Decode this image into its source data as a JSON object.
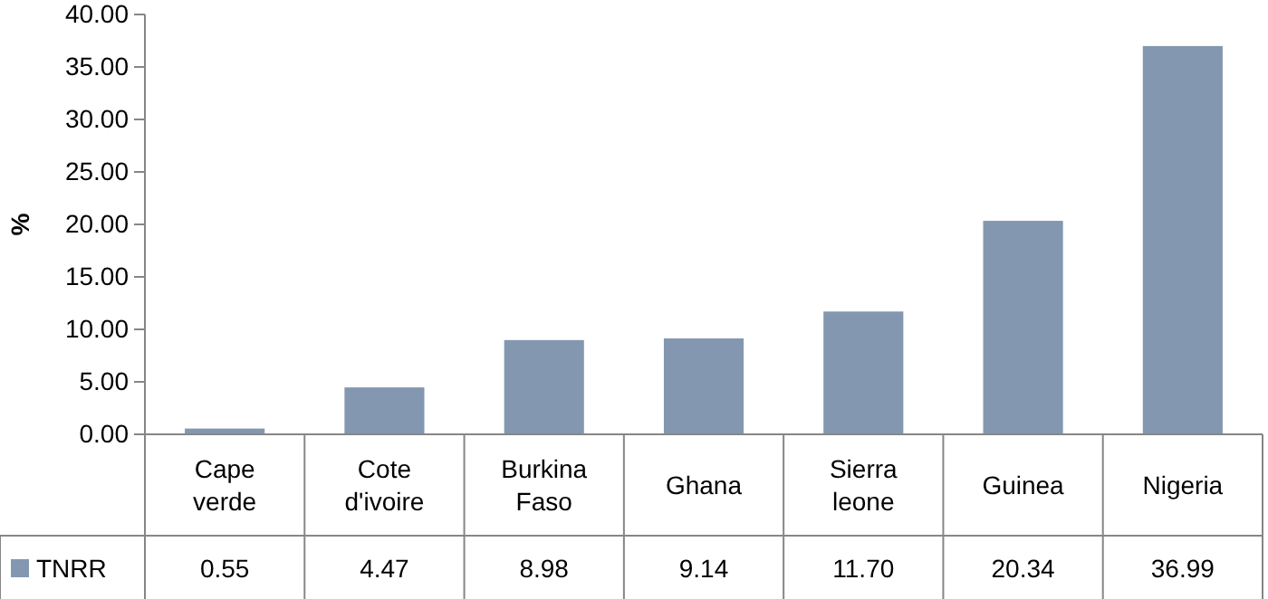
{
  "chart_data": {
    "type": "bar",
    "ylabel": "%",
    "categories": [
      "Cape verde",
      "Cote d'ivoire",
      "Burkina Faso",
      "Ghana",
      "Sierra leone",
      "Guinea",
      "Nigeria"
    ],
    "series": [
      {
        "name": "TNRR",
        "color": "#8497b0",
        "values": [
          0.55,
          4.47,
          8.98,
          9.14,
          11.7,
          20.34,
          36.99
        ],
        "value_labels": [
          "0.55",
          "4.47",
          "8.98",
          "9.14",
          "11.70",
          "20.34",
          "36.99"
        ]
      }
    ],
    "ylim": [
      0,
      40
    ],
    "yticks": [
      {
        "value": 0,
        "label": "0.00"
      },
      {
        "value": 5,
        "label": "5.00"
      },
      {
        "value": 10,
        "label": "10.00"
      },
      {
        "value": 15,
        "label": "15.00"
      },
      {
        "value": 20,
        "label": "20.00"
      },
      {
        "value": 25,
        "label": "25.00"
      },
      {
        "value": 30,
        "label": "30.00"
      },
      {
        "value": 35,
        "label": "35.00"
      },
      {
        "value": 40,
        "label": "40.00"
      }
    ],
    "grid": false,
    "legend": "bottom"
  }
}
